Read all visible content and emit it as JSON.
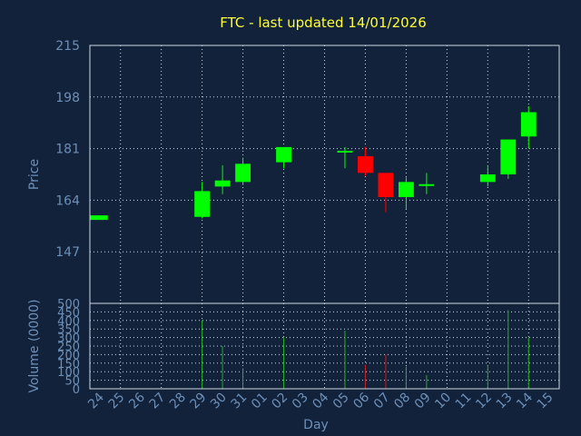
{
  "chart_data": {
    "type": "candlestick",
    "title": "FTC - last updated 14/01/2026",
    "xlabel": "Day",
    "price_panel": {
      "ylabel": "Price",
      "ylim": [
        130,
        215
      ],
      "yticks": [
        "215",
        "198",
        "181",
        "164",
        "147"
      ],
      "ytick_values": [
        215,
        198,
        181,
        164,
        147
      ]
    },
    "volume_panel": {
      "ylabel": "Volume (0000)",
      "ylim": [
        0,
        500
      ],
      "yticks": [
        "500",
        "450",
        "400",
        "350",
        "300",
        "250",
        "200",
        "150",
        "100",
        "50",
        "0"
      ],
      "ytick_values": [
        500,
        450,
        400,
        350,
        300,
        250,
        200,
        150,
        100,
        50,
        0
      ]
    },
    "dates": [
      "24",
      "25",
      "26",
      "27",
      "28",
      "29",
      "30",
      "31",
      "01",
      "02",
      "03",
      "04",
      "05",
      "06",
      "07",
      "08",
      "09",
      "10",
      "11",
      "12",
      "13",
      "14",
      "15"
    ],
    "candles": [
      {
        "date": "24",
        "open": 157.5,
        "close": 159,
        "high": 159,
        "low": 157.5,
        "volume": 0
      },
      {
        "date": "29",
        "open": 158.5,
        "close": 167,
        "high": 170,
        "low": 158,
        "volume": 400
      },
      {
        "date": "30",
        "open": 168.5,
        "close": 170.5,
        "high": 175.5,
        "low": 166,
        "volume": 250
      },
      {
        "date": "31",
        "open": 170,
        "close": 176,
        "high": 178,
        "low": 169,
        "volume": 120
      },
      {
        "date": "02",
        "open": 176.5,
        "close": 181.5,
        "high": 181.5,
        "low": 174.5,
        "volume": 300
      },
      {
        "date": "05",
        "open": 180,
        "close": 180,
        "high": 181.5,
        "low": 174.5,
        "volume": 340
      },
      {
        "date": "06",
        "open": 178.5,
        "close": 173,
        "high": 181.5,
        "low": 172,
        "volume": 140
      },
      {
        "date": "07",
        "open": 173,
        "close": 165,
        "high": 173,
        "low": 160,
        "volume": 200
      },
      {
        "date": "08",
        "open": 165,
        "close": 170,
        "high": 171.5,
        "low": 161,
        "volume": 130
      },
      {
        "date": "09",
        "open": 169,
        "close": 169,
        "high": 173,
        "low": 166,
        "volume": 80
      },
      {
        "date": "12",
        "open": 170,
        "close": 172.5,
        "high": 175.5,
        "low": 168.5,
        "volume": 140
      },
      {
        "date": "13",
        "open": 172.5,
        "close": 184,
        "high": 184,
        "low": 171,
        "volume": 460
      },
      {
        "date": "14",
        "open": 185,
        "close": 193,
        "high": 195,
        "low": 181,
        "volume": 300
      }
    ],
    "colors": {
      "background": "#11223a",
      "title": "#ffff33",
      "up": "#00ff00",
      "down": "#ff0000",
      "axis_text": "#6d8fb8",
      "grid": "#cfd8e3",
      "volume_up": "#22b022",
      "volume_down": "#c02020"
    },
    "grid": true
  }
}
